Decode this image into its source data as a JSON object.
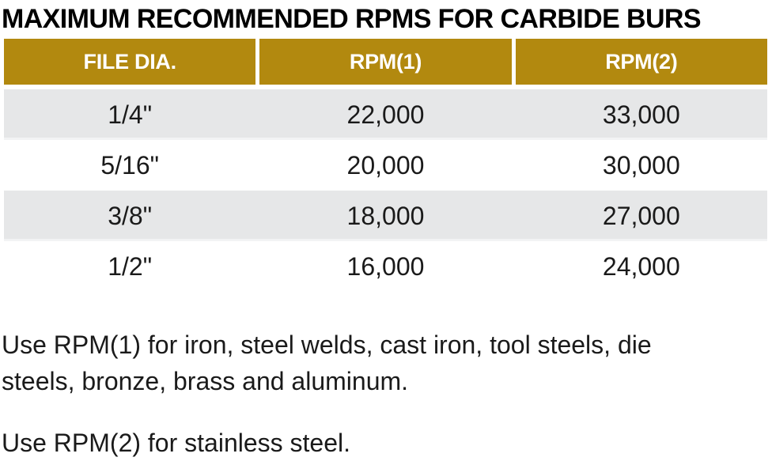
{
  "title": "MAXIMUM RECOMMENDED RPMS FOR CARBIDE BURS",
  "colors": {
    "header_bg": "#B2890F",
    "header_text": "#FFFFFF",
    "row_alt_bg": "#E6E7E8",
    "row_bg": "#FFFFFF",
    "text": "#1A1A1A"
  },
  "table": {
    "columns": [
      "FILE DIA.",
      "RPM(1)",
      "RPM(2)"
    ],
    "rows": [
      [
        "1/4\"",
        "22,000",
        "33,000"
      ],
      [
        "5/16\"",
        "20,000",
        "30,000"
      ],
      [
        "3/8\"",
        "18,000",
        "27,000"
      ],
      [
        "1/2\"",
        "16,000",
        "24,000"
      ]
    ]
  },
  "notes": [
    {
      "lines": [
        "Use RPM(1) for iron, steel welds, cast iron, tool steels, die",
        "steels, bronze, brass and aluminum."
      ]
    },
    {
      "lines": [
        "Use RPM(2) for stainless steel."
      ]
    }
  ]
}
